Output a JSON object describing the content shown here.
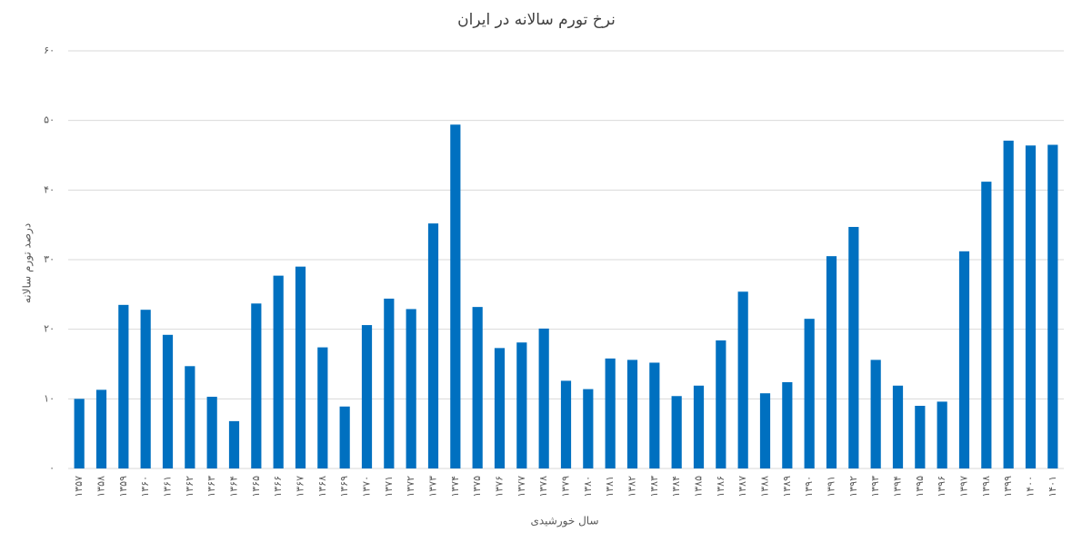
{
  "chart_data": {
    "type": "bar",
    "title": "نرخ تورم سالانه در ایران",
    "x_label": "سال خورشیدی",
    "y_label": "درصد تورم سالانه",
    "categories": [
      "۱۳۵۷",
      "۱۳۵۸",
      "۱۳۵۹",
      "۱۳۶۰",
      "۱۳۶۱",
      "۱۳۶۲",
      "۱۳۶۳",
      "۱۳۶۴",
      "۱۳۶۵",
      "۱۳۶۶",
      "۱۳۶۷",
      "۱۳۶۸",
      "۱۳۶۹",
      "۱۳۷۰",
      "۱۳۷۱",
      "۱۳۷۲",
      "۱۳۷۳",
      "۱۳۷۴",
      "۱۳۷۵",
      "۱۳۷۶",
      "۱۳۷۷",
      "۱۳۷۸",
      "۱۳۷۹",
      "۱۳۸۰",
      "۱۳۸۱",
      "۱۳۸۲",
      "۱۳۸۳",
      "۱۳۸۴",
      "۱۳۸۵",
      "۱۳۸۶",
      "۱۳۸۷",
      "۱۳۸۸",
      "۱۳۸۹",
      "۱۳۹۰",
      "۱۳۹۱",
      "۱۳۹۲",
      "۱۳۹۳",
      "۱۳۹۴",
      "۱۳۹۵",
      "۱۳۹۶",
      "۱۳۹۷",
      "۱۳۹۸",
      "۱۳۹۹",
      "۱۴۰۰",
      "۱۴۰۱"
    ],
    "values": [
      10.0,
      11.3,
      23.5,
      22.8,
      19.2,
      14.7,
      10.3,
      6.8,
      23.7,
      27.7,
      29.0,
      17.4,
      8.9,
      20.6,
      24.4,
      22.9,
      35.2,
      49.4,
      23.2,
      17.3,
      18.1,
      20.1,
      12.6,
      11.4,
      15.8,
      15.6,
      15.2,
      10.4,
      11.9,
      18.4,
      25.4,
      10.8,
      12.4,
      21.5,
      30.5,
      34.7,
      15.6,
      11.9,
      9.0,
      9.6,
      31.2,
      41.2,
      47.1,
      46.4,
      46.5
    ],
    "color": "#0070c0",
    "ylim": [
      0,
      60
    ],
    "yticks": [
      {
        "value": 0,
        "label": "۰"
      },
      {
        "value": 10,
        "label": "۱۰"
      },
      {
        "value": 20,
        "label": "۲۰"
      },
      {
        "value": 30,
        "label": "۳۰"
      },
      {
        "value": 40,
        "label": "۴۰"
      },
      {
        "value": 50,
        "label": "۵۰"
      },
      {
        "value": 60,
        "label": "۶۰"
      }
    ],
    "grid": true
  }
}
